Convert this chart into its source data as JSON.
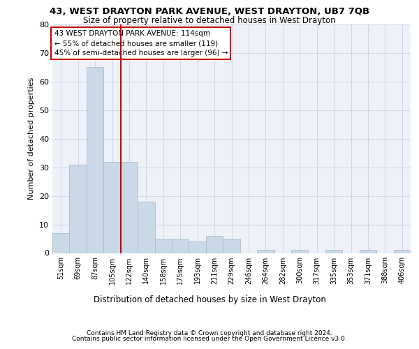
{
  "title1": "43, WEST DRAYTON PARK AVENUE, WEST DRAYTON, UB7 7QB",
  "title2": "Size of property relative to detached houses in West Drayton",
  "xlabel": "Distribution of detached houses by size in West Drayton",
  "ylabel": "Number of detached properties",
  "bar_labels": [
    "51sqm",
    "69sqm",
    "87sqm",
    "105sqm",
    "122sqm",
    "140sqm",
    "158sqm",
    "175sqm",
    "193sqm",
    "211sqm",
    "229sqm",
    "246sqm",
    "264sqm",
    "282sqm",
    "300sqm",
    "317sqm",
    "335sqm",
    "353sqm",
    "371sqm",
    "388sqm",
    "406sqm"
  ],
  "bar_values": [
    7,
    31,
    65,
    32,
    32,
    18,
    5,
    5,
    4,
    6,
    5,
    0,
    1,
    0,
    1,
    0,
    1,
    0,
    1,
    0,
    1
  ],
  "bar_color": "#c9d9e8",
  "bar_edgecolor": "#aabccc",
  "vline_x": 3.5,
  "vline_color": "#cc0000",
  "ylim": [
    0,
    80
  ],
  "yticks": [
    0,
    10,
    20,
    30,
    40,
    50,
    60,
    70,
    80
  ],
  "grid_color": "#d0d8e8",
  "bg_color": "#eef2f8",
  "annotation_text": "43 WEST DRAYTON PARK AVENUE: 114sqm\n← 55% of detached houses are smaller (119)\n45% of semi-detached houses are larger (96) →",
  "footer1": "Contains HM Land Registry data © Crown copyright and database right 2024.",
  "footer2": "Contains public sector information licensed under the Open Government Licence v3.0.",
  "title1_fontsize": 9.5,
  "title2_fontsize": 8.5,
  "xlabel_fontsize": 8.5,
  "ylabel_fontsize": 8,
  "tick_fontsize": 7,
  "footer_fontsize": 6.5,
  "annot_fontsize": 7.5
}
